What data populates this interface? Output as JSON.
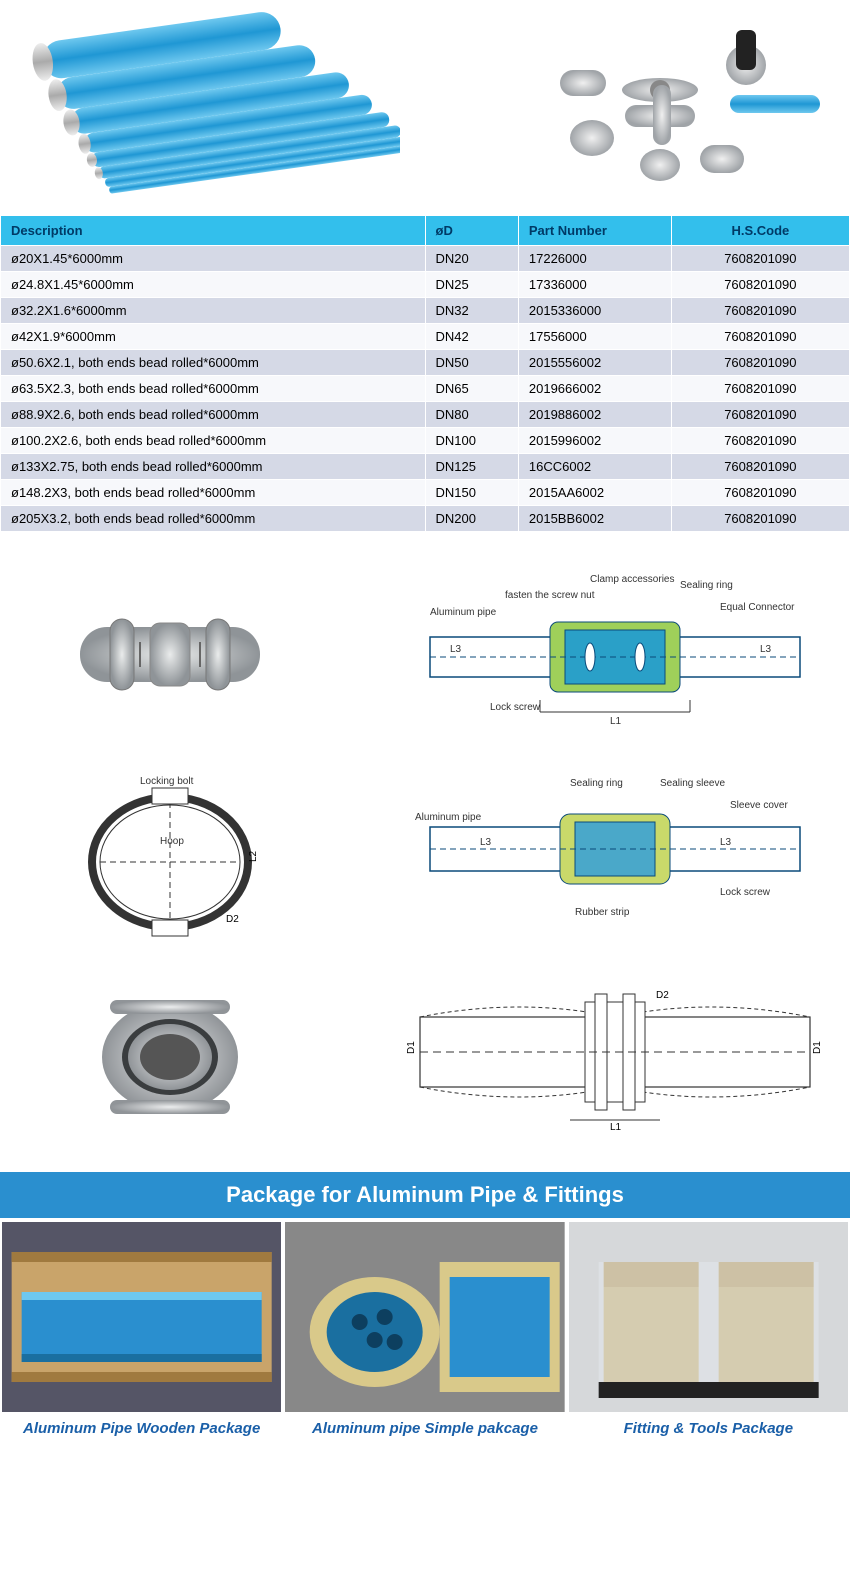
{
  "colors": {
    "table_header_bg": "#33bfec",
    "table_header_text": "#003a66",
    "row_odd_bg": "#d5d9e6",
    "row_even_bg": "#f7f8fb",
    "section_title_bg": "#2a8fcf",
    "section_title_text": "#ffffff",
    "caption_text": "#1a5fa8",
    "pipe_blue": "#39a8e0",
    "metal_grey": "#bfc4c8"
  },
  "table": {
    "headers": [
      "Description",
      "øD",
      "Part Number",
      "H.S.Code"
    ],
    "rows": [
      [
        "ø20X1.45*6000mm",
        "DN20",
        "17226000",
        "7608201090"
      ],
      [
        "ø24.8X1.45*6000mm",
        "DN25",
        "17336000",
        "7608201090"
      ],
      [
        "ø32.2X1.6*6000mm",
        "DN32",
        "2015336000",
        "7608201090"
      ],
      [
        "ø42X1.9*6000mm",
        "DN42",
        "17556000",
        "7608201090"
      ],
      [
        "ø50.6X2.1, both ends bead rolled*6000mm",
        "DN50",
        "2015556002",
        "7608201090"
      ],
      [
        "ø63.5X2.3, both ends bead rolled*6000mm",
        "DN65",
        "2019666002",
        "7608201090"
      ],
      [
        "ø88.9X2.6, both ends bead rolled*6000mm",
        "DN80",
        "2019886002",
        "7608201090"
      ],
      [
        "ø100.2X2.6, both ends bead rolled*6000mm",
        "DN100",
        "2015996002",
        "7608201090"
      ],
      [
        "ø133X2.75, both ends bead rolled*6000mm",
        "DN125",
        "16CC6002",
        "7608201090"
      ],
      [
        "ø148.2X3, both ends bead rolled*6000mm",
        "DN150",
        "2015AA6002",
        "7608201090"
      ],
      [
        "ø205X3.2, both ends bead rolled*6000mm",
        "DN200",
        "2015BB6002",
        "7608201090"
      ]
    ]
  },
  "diagrams": {
    "connector": {
      "labels": [
        "Clamp accessories",
        "fasten the screw nut",
        "Aluminum pipe",
        "Lock screw",
        "Sealing ring",
        "Equal Connector"
      ],
      "dims": [
        "D1",
        "D2",
        "L1",
        "L3"
      ]
    },
    "hoop": {
      "labels": [
        "Locking bolt",
        "Hoop"
      ],
      "dims": [
        "L2",
        "D2"
      ]
    },
    "sleeve": {
      "labels": [
        "Aluminum pipe",
        "Sealing ring",
        "Sealing sleeve",
        "Sleeve cover",
        "Rubber strip",
        "Lock screw"
      ],
      "dims": [
        "L3"
      ]
    },
    "clamp_side": {
      "dims": [
        "D1",
        "D2",
        "L1"
      ]
    }
  },
  "section_title": "Package for Aluminum Pipe & Fittings",
  "packages": [
    {
      "caption": "Aluminum Pipe Wooden Package"
    },
    {
      "caption": "Aluminum pipe Simple pakcage"
    },
    {
      "caption": "Fitting & Tools Package"
    }
  ]
}
